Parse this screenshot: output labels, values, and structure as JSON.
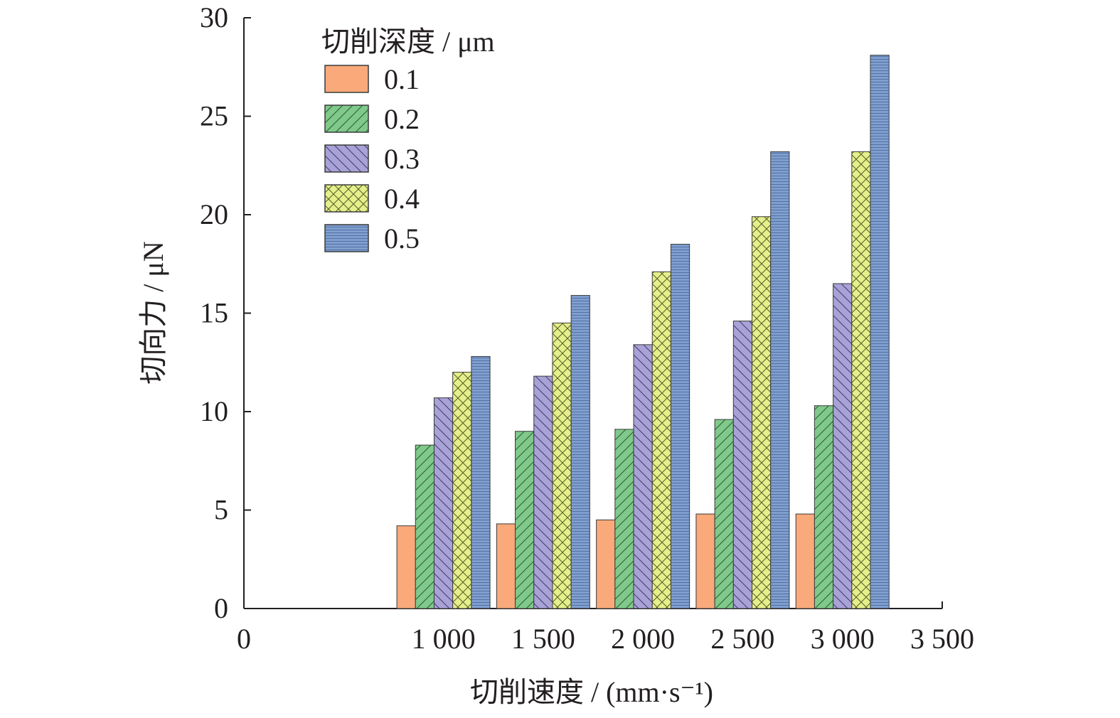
{
  "chart_data": {
    "type": "bar",
    "xlabel": "切削速度 / (mm·s⁻¹)",
    "ylabel": "切向力 / μN",
    "ylim": [
      0,
      30
    ],
    "xlim": [
      0,
      3500
    ],
    "grid": false,
    "legend_position": "top-left",
    "legend_title": "切削深度 / μm",
    "categories": [
      "1 000",
      "1 500",
      "2 000",
      "2 500",
      "3 000"
    ],
    "x_values": [
      1000,
      1500,
      2000,
      2500,
      3000
    ],
    "x_ticks": [
      {
        "value": 0,
        "label": "0"
      },
      {
        "value": 1000,
        "label": "1 000"
      },
      {
        "value": 1500,
        "label": "1 500"
      },
      {
        "value": 2000,
        "label": "2 000"
      },
      {
        "value": 2500,
        "label": "2 500"
      },
      {
        "value": 3000,
        "label": "3 000"
      },
      {
        "value": 3500,
        "label": "3 500"
      }
    ],
    "y_ticks": [
      {
        "value": 0,
        "label": "0"
      },
      {
        "value": 5,
        "label": "5"
      },
      {
        "value": 10,
        "label": "10"
      },
      {
        "value": 15,
        "label": "15"
      },
      {
        "value": 20,
        "label": "20"
      },
      {
        "value": 25,
        "label": "25"
      },
      {
        "value": 30,
        "label": "30"
      }
    ],
    "series": [
      {
        "name": "0.1",
        "color": "#f9a97a",
        "pattern": "none",
        "values": [
          4.2,
          4.3,
          4.5,
          4.8,
          4.8
        ]
      },
      {
        "name": "0.2",
        "color": "#7fc98a",
        "pattern": "diagonal",
        "values": [
          8.3,
          9.0,
          9.1,
          9.6,
          10.3
        ]
      },
      {
        "name": "0.3",
        "color": "#a8a2d6",
        "pattern": "back-diagonal",
        "values": [
          10.7,
          11.8,
          13.4,
          14.6,
          16.5
        ]
      },
      {
        "name": "0.4",
        "color": "#e4f08a",
        "pattern": "crosshatch",
        "values": [
          12.0,
          14.5,
          17.1,
          19.9,
          23.2
        ]
      },
      {
        "name": "0.5",
        "color": "#7f9fd0",
        "pattern": "horizontal",
        "values": [
          12.8,
          15.9,
          18.5,
          23.2,
          28.1
        ]
      }
    ]
  }
}
